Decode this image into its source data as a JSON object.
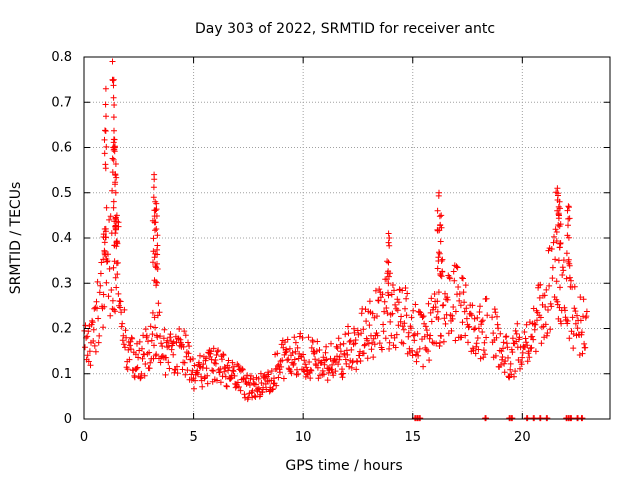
{
  "chart_data": {
    "type": "scatter",
    "title": "Day 303 of 2022, SRMTID for receiver antc",
    "xlabel": "GPS time / hours",
    "ylabel": "SRMTID / TECUs",
    "xlim": [
      0,
      24
    ],
    "ylim": [
      0,
      0.8
    ],
    "grid": true,
    "marker": "+",
    "x_ticks": [
      0,
      5,
      10,
      15,
      20
    ],
    "x_tick_labels": [
      "0",
      "5",
      "10",
      "15",
      "20"
    ],
    "y_ticks": [
      0,
      0.1,
      0.2,
      0.3,
      0.4,
      0.5,
      0.6,
      0.7,
      0.8
    ],
    "y_tick_labels": [
      "0",
      "0.1",
      "0.2",
      "0.3",
      "0.4",
      "0.5",
      "0.6",
      "0.7",
      "0.8"
    ],
    "series": [
      {
        "name": "SRMTID",
        "color": "#ff0000",
        "profile_x": [
          0,
          0.3,
          0.6,
          0.9,
          1.2,
          1.5,
          2.0,
          2.5,
          3.0,
          3.3,
          3.6,
          4.0,
          4.5,
          5.0,
          5.5,
          6.0,
          6.5,
          7.0,
          7.5,
          8.0,
          8.5,
          9.0,
          9.5,
          10.0,
          10.5,
          11.0,
          11.5,
          12.0,
          12.5,
          13.0,
          13.5,
          14.0,
          14.5,
          15.0,
          15.5,
          16.0,
          16.5,
          17.0,
          17.5,
          18.0,
          18.5,
          19.0,
          19.5,
          20.0,
          20.5,
          21.0,
          21.5,
          22.0,
          22.5,
          23.0
        ],
        "profile_y": [
          0.17,
          0.18,
          0.22,
          0.3,
          0.35,
          0.3,
          0.14,
          0.13,
          0.16,
          0.22,
          0.15,
          0.14,
          0.16,
          0.1,
          0.11,
          0.12,
          0.1,
          0.09,
          0.07,
          0.07,
          0.09,
          0.13,
          0.14,
          0.14,
          0.13,
          0.12,
          0.13,
          0.15,
          0.17,
          0.2,
          0.22,
          0.24,
          0.23,
          0.2,
          0.17,
          0.22,
          0.26,
          0.25,
          0.23,
          0.2,
          0.22,
          0.15,
          0.13,
          0.18,
          0.19,
          0.25,
          0.32,
          0.28,
          0.21,
          0.2
        ],
        "peaks": [
          {
            "x": 0.95,
            "y": 0.42
          },
          {
            "x": 1.0,
            "y": 0.73
          },
          {
            "x": 1.3,
            "y": 0.79
          },
          {
            "x": 1.35,
            "y": 0.71
          },
          {
            "x": 1.4,
            "y": 0.6
          },
          {
            "x": 1.45,
            "y": 0.5
          },
          {
            "x": 1.5,
            "y": 0.45
          },
          {
            "x": 3.2,
            "y": 0.54
          },
          {
            "x": 3.25,
            "y": 0.48
          },
          {
            "x": 3.3,
            "y": 0.42
          },
          {
            "x": 13.9,
            "y": 0.41
          },
          {
            "x": 16.2,
            "y": 0.5
          },
          {
            "x": 16.3,
            "y": 0.45
          },
          {
            "x": 21.6,
            "y": 0.51
          },
          {
            "x": 21.7,
            "y": 0.48
          },
          {
            "x": 22.1,
            "y": 0.47
          }
        ],
        "zeros_x": [
          15.1,
          15.2,
          15.3,
          18.3,
          19.4,
          19.5,
          20.2,
          20.5,
          20.8,
          21.1,
          22.0,
          22.1,
          22.2,
          22.5,
          22.7
        ]
      }
    ]
  }
}
